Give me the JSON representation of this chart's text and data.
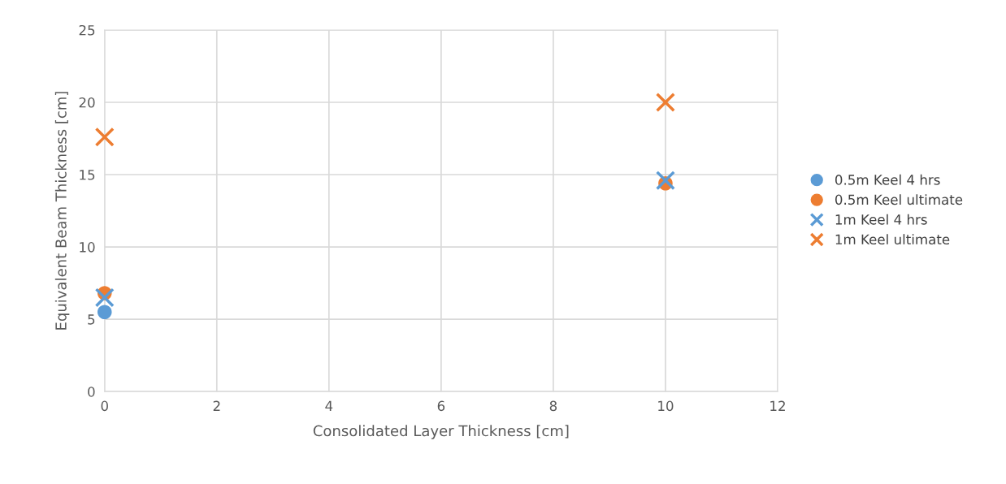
{
  "chart_data": {
    "type": "scatter",
    "xlabel": "Consolidated Layer Thickness [cm]",
    "ylabel": "Equivalent Beam Thickness [cm]",
    "xlim": [
      0,
      12
    ],
    "xticks": [
      0,
      2,
      4,
      6,
      8,
      10,
      12
    ],
    "ylim": [
      0,
      25
    ],
    "yticks": [
      0,
      5,
      10,
      15,
      20,
      25
    ],
    "grid": true,
    "legend": "right",
    "x": [
      0,
      10
    ],
    "series": [
      {
        "name": "0.5m Keel 4 hrs",
        "color": "#5b9bd5",
        "marker": "circle",
        "values": [
          5.5,
          null
        ]
      },
      {
        "name": "0.5m Keel ultimate",
        "color": "#ed7d31",
        "marker": "circle",
        "values": [
          6.8,
          14.4
        ]
      },
      {
        "name": "1m Keel 4 hrs",
        "color": "#5b9bd5",
        "marker": "cross",
        "values": [
          6.5,
          14.6
        ]
      },
      {
        "name": "1m Keel ultimate",
        "color": "#ed7d31",
        "marker": "cross",
        "values": [
          17.6,
          20.0
        ]
      }
    ]
  }
}
